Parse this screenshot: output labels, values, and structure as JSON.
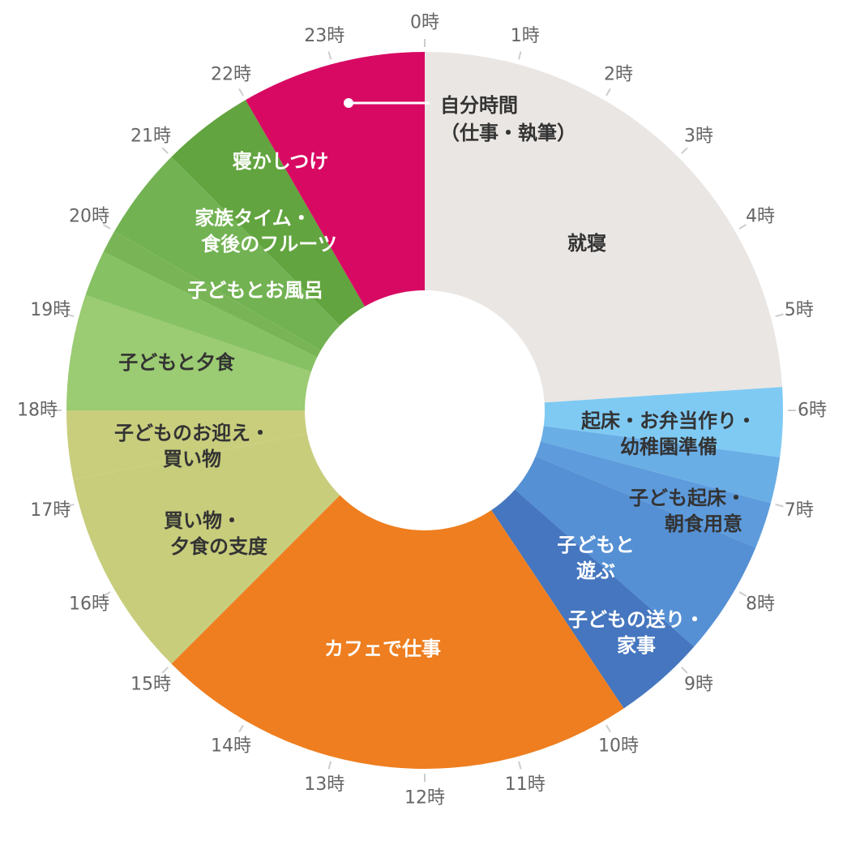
{
  "chart_data": {
    "type": "pie",
    "variant": "donut-24h-clock",
    "title": "",
    "hour_labels": [
      "0時",
      "1時",
      "2時",
      "3時",
      "4時",
      "5時",
      "6時",
      "7時",
      "8時",
      "9時",
      "10時",
      "11時",
      "12時",
      "13時",
      "14時",
      "15時",
      "16時",
      "17時",
      "18時",
      "19時",
      "20時",
      "21時",
      "22時",
      "23時"
    ],
    "segments": [
      {
        "label": [
          "就寝"
        ],
        "start": 0.0,
        "end": 5.75,
        "hours": 5.75,
        "color": "#eae6e3",
        "text_color": "#333333"
      },
      {
        "label": [
          "起床・お弁当作り・",
          "幼稚園準備"
        ],
        "start": 5.75,
        "end": 6.5,
        "hours": 0.75,
        "color": "#7fcaf3",
        "text_color": "#333333"
      },
      {
        "label": [
          "子ども起床・",
          "朝食用意"
        ],
        "start": 6.5,
        "end": 7.0,
        "hours": 0.5,
        "color": "#6aaee6",
        "text_color": "#333333"
      },
      {
        "label": [
          "子どもと",
          "遊ぶ"
        ],
        "start": 7.0,
        "end": 7.5,
        "hours": 0.5,
        "color": "#5d9bdc",
        "text_color": "#ffffff"
      },
      {
        "label": [
          "子どもの送り・",
          "家事"
        ],
        "start": 7.5,
        "end": 8.75,
        "hours": 1.25,
        "color": "#5590d4",
        "text_color": "#ffffff"
      },
      {
        "label": [],
        "start": 8.75,
        "end": 9.75,
        "hours": 1.0,
        "color": "#4576bf",
        "text_color": "#ffffff"
      },
      {
        "label": [
          "カフェで仕事"
        ],
        "start": 9.75,
        "end": 15.0,
        "hours": 5.25,
        "color": "#ee7e1f",
        "text_color": "#ffffff"
      },
      {
        "label": [
          "買い物・",
          "夕食の支度"
        ],
        "start": 15.0,
        "end": 17.25,
        "hours": 2.25,
        "color": "#c8cd7c",
        "text_color": "#333333"
      },
      {
        "label": [
          "子どものお迎え・",
          "買い物"
        ],
        "start": 17.25,
        "end": 18.0,
        "hours": 0.75,
        "color": "#c9ce7d",
        "text_color": "#333333"
      },
      {
        "label": [
          "子どもと夕食"
        ],
        "start": 18.0,
        "end": 19.25,
        "hours": 1.25,
        "color": "#9bcb72",
        "text_color": "#333333"
      },
      {
        "label": [
          "子どもとお風呂"
        ],
        "start": 19.25,
        "end": 19.75,
        "hours": 0.5,
        "color": "#86c164",
        "text_color": "#ffffff"
      },
      {
        "label": [],
        "start": 19.75,
        "end": 20.0,
        "hours": 0.25,
        "color": "#79b557",
        "text_color": "#ffffff"
      },
      {
        "label": [
          "家族タイム・",
          "食後のフルーツ"
        ],
        "start": 20.0,
        "end": 21.0,
        "hours": 1.0,
        "color": "#72b252",
        "text_color": "#ffffff"
      },
      {
        "label": [
          "寝かしつけ"
        ],
        "start": 21.0,
        "end": 22.0,
        "hours": 1.0,
        "color": "#62a43f",
        "text_color": "#ffffff"
      },
      {
        "label": [],
        "start": 22.0,
        "end": 24.0,
        "hours": 2.0,
        "color": "#d80963",
        "text_color": "#ffffff"
      }
    ],
    "callout": {
      "label": [
        "自分時間",
        "（仕事・執筆）"
      ],
      "segment": 14,
      "text_color": "#333333",
      "line_color": "#ffffff"
    }
  }
}
